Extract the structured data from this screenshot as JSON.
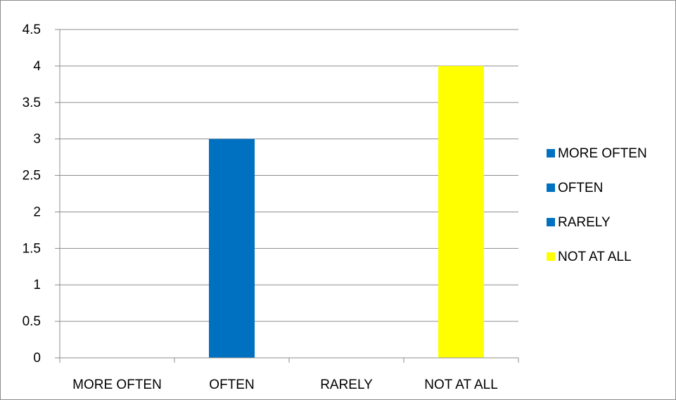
{
  "chart_data": {
    "type": "bar",
    "categories": [
      "MORE OFTEN",
      "OFTEN",
      "RARELY",
      "NOT AT ALL"
    ],
    "values": [
      0,
      3,
      0,
      4
    ],
    "colors": [
      "#0070C0",
      "#0070C0",
      "#0070C0",
      "#FFFF00"
    ],
    "ylim": [
      0,
      4.5
    ],
    "y_ticks": [
      "0",
      "0.5",
      "1",
      "1.5",
      "2",
      "2.5",
      "3",
      "3.5",
      "4",
      "4.5"
    ],
    "grid": "horizontal",
    "legend": {
      "placement": "right",
      "entries": [
        {
          "label": "MORE OFTEN",
          "color": "#0070C0"
        },
        {
          "label": "OFTEN",
          "color": "#0070C0"
        },
        {
          "label": "RARELY",
          "color": "#0070C0"
        },
        {
          "label": "NOT AT ALL",
          "color": "#FFFF00"
        }
      ]
    }
  }
}
